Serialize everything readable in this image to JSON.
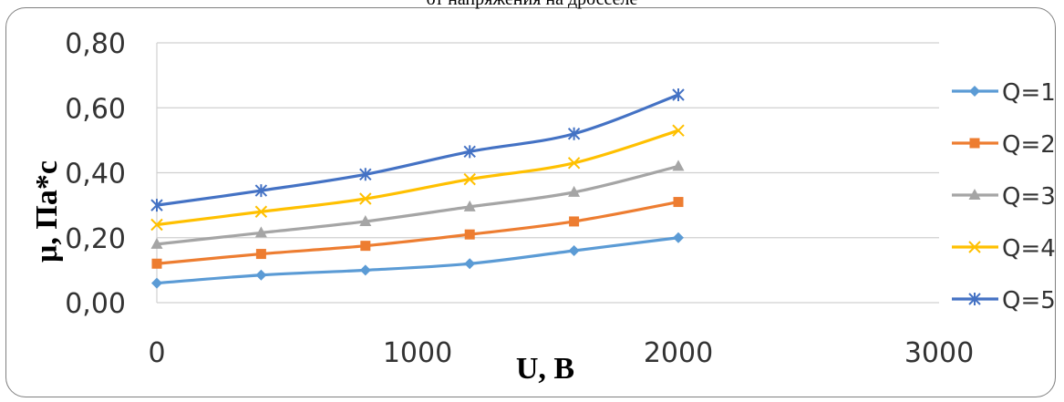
{
  "chart_data": {
    "type": "line",
    "title": "от напряжения на дросселе",
    "xlabel": "U, В",
    "ylabel": "μ, Па*с",
    "x": [
      0,
      400,
      800,
      1200,
      1600,
      2000
    ],
    "xlim": [
      0,
      3000
    ],
    "ylim": [
      0,
      0.8
    ],
    "x_ticks": [
      "0",
      "1000",
      "2000",
      "3000"
    ],
    "y_ticks": [
      "0,00",
      "0,20",
      "0,40",
      "0,60",
      "0,80"
    ],
    "grid": "horizontal",
    "legend_position": "right",
    "series": [
      {
        "name": "Q=1",
        "color": "#5b9bd5",
        "marker": "diamond",
        "values": [
          0.06,
          0.085,
          0.1,
          0.12,
          0.16,
          0.2
        ]
      },
      {
        "name": "Q=2",
        "color": "#ed7d31",
        "marker": "square",
        "values": [
          0.12,
          0.15,
          0.175,
          0.21,
          0.25,
          0.31
        ]
      },
      {
        "name": "Q=3",
        "color": "#a5a5a5",
        "marker": "triangle",
        "values": [
          0.18,
          0.215,
          0.25,
          0.295,
          0.34,
          0.42
        ]
      },
      {
        "name": "Q=4",
        "color": "#ffc000",
        "marker": "x",
        "values": [
          0.24,
          0.28,
          0.32,
          0.38,
          0.43,
          0.53
        ]
      },
      {
        "name": "Q=5",
        "color": "#4472c4",
        "marker": "star",
        "values": [
          0.3,
          0.345,
          0.395,
          0.465,
          0.52,
          0.64
        ]
      }
    ]
  }
}
